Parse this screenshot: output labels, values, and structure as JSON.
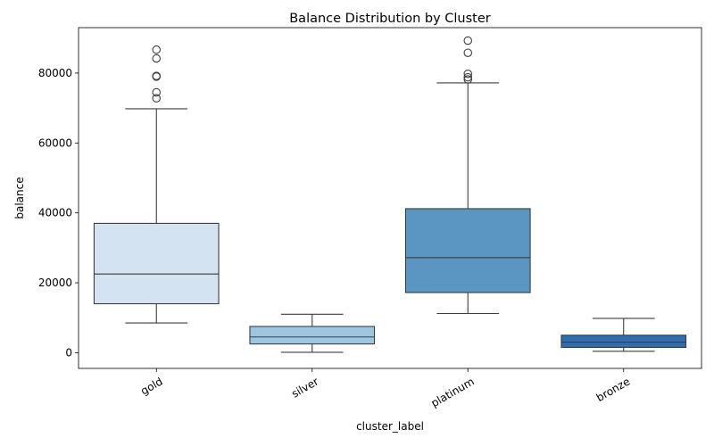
{
  "chart_data": {
    "type": "boxplot",
    "title": "Balance Distribution by Cluster",
    "xlabel": "cluster_label",
    "ylabel": "balance",
    "ylim": [
      -4500,
      93000
    ],
    "yticks": [
      0,
      20000,
      40000,
      60000,
      80000
    ],
    "ytick_labels": [
      "0",
      "20000",
      "40000",
      "60000",
      "80000"
    ],
    "grid": false,
    "categories": [
      "gold",
      "silver",
      "platinum",
      "bronze"
    ],
    "boxes": [
      {
        "category": "gold",
        "color": "#d4e3f1",
        "whisker_low": 8500,
        "q1": 14000,
        "median": 22500,
        "q3": 37000,
        "whisker_high": 69800,
        "outliers": [
          72800,
          74500,
          79000,
          79200,
          84200,
          86700
        ]
      },
      {
        "category": "silver",
        "color": "#9dc7e0",
        "whisker_low": 100,
        "q1": 2500,
        "median": 4500,
        "q3": 7500,
        "whisker_high": 11000,
        "outliers": []
      },
      {
        "category": "platinum",
        "color": "#5a96c1",
        "whisker_low": 11200,
        "q1": 17200,
        "median": 27200,
        "q3": 41200,
        "whisker_high": 77200,
        "outliers": [
          78200,
          78800,
          79800,
          85800,
          89300
        ]
      },
      {
        "category": "bronze",
        "color": "#2c6eaf",
        "whisker_low": 400,
        "q1": 1500,
        "median": 3000,
        "q3": 5000,
        "whisker_high": 9800,
        "outliers": []
      }
    ]
  }
}
